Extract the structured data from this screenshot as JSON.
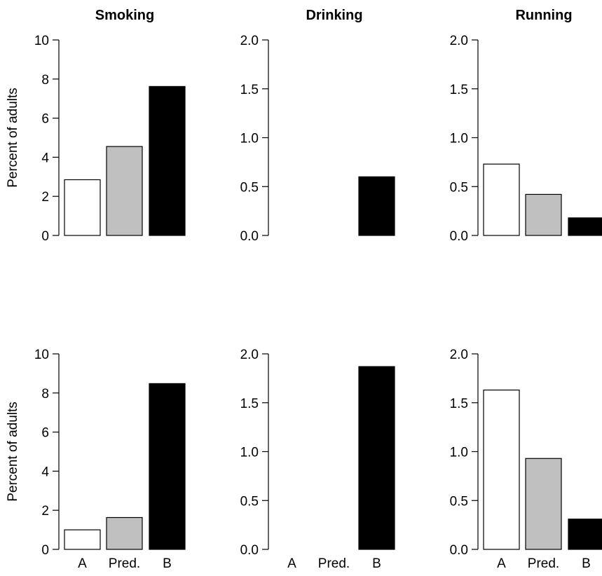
{
  "colors": {
    "A": "#ffffff",
    "Pred.": "#c0c0c0",
    "B": "#000000",
    "stroke": "#000000"
  },
  "chart_data": [
    {
      "type": "bar",
      "title": "Smoking",
      "ylabel": "Percent of adults",
      "categories": [
        "A",
        "Pred.",
        "B"
      ],
      "values": [
        2.85,
        4.55,
        7.62
      ],
      "ylim": [
        0,
        10
      ],
      "yticks": [
        0,
        2,
        4,
        6,
        8,
        10
      ],
      "yticklabels": [
        "0",
        "2",
        "4",
        "6",
        "8",
        "10"
      ],
      "show_categories": false
    },
    {
      "type": "bar",
      "title": "Drinking",
      "ylabel": "",
      "categories": [
        "A",
        "Pred.",
        "B"
      ],
      "values": [
        0.0,
        0.0,
        0.6
      ],
      "ylim": [
        0,
        2
      ],
      "yticks": [
        0,
        0.5,
        1,
        1.5,
        2
      ],
      "yticklabels": [
        "0.0",
        "0.5",
        "1.0",
        "1.5",
        "2.0"
      ],
      "show_categories": false
    },
    {
      "type": "bar",
      "title": "Running",
      "ylabel": "",
      "categories": [
        "A",
        "Pred.",
        "B"
      ],
      "values": [
        0.73,
        0.42,
        0.18
      ],
      "ylim": [
        0,
        2
      ],
      "yticks": [
        0,
        0.5,
        1,
        1.5,
        2
      ],
      "yticklabels": [
        "0.0",
        "0.5",
        "1.0",
        "1.5",
        "2.0"
      ],
      "show_categories": false
    },
    {
      "type": "bar",
      "title": "",
      "ylabel": "Percent of adults",
      "categories": [
        "A",
        "Pred.",
        "B"
      ],
      "values": [
        1.0,
        1.63,
        8.48
      ],
      "ylim": [
        0,
        10
      ],
      "yticks": [
        0,
        2,
        4,
        6,
        8,
        10
      ],
      "yticklabels": [
        "0",
        "2",
        "4",
        "6",
        "8",
        "10"
      ],
      "show_categories": true
    },
    {
      "type": "bar",
      "title": "",
      "ylabel": "",
      "categories": [
        "A",
        "Pred.",
        "B"
      ],
      "values": [
        0.0,
        0.0,
        1.87
      ],
      "ylim": [
        0,
        2
      ],
      "yticks": [
        0,
        0.5,
        1,
        1.5,
        2
      ],
      "yticklabels": [
        "0.0",
        "0.5",
        "1.0",
        "1.5",
        "2.0"
      ],
      "show_categories": true
    },
    {
      "type": "bar",
      "title": "",
      "ylabel": "",
      "categories": [
        "A",
        "Pred.",
        "B"
      ],
      "values": [
        1.63,
        0.93,
        0.31
      ],
      "ylim": [
        0,
        2
      ],
      "yticks": [
        0,
        0.5,
        1,
        1.5,
        2
      ],
      "yticklabels": [
        "0.0",
        "0.5",
        "1.0",
        "1.5",
        "2.0"
      ],
      "show_categories": true
    }
  ]
}
